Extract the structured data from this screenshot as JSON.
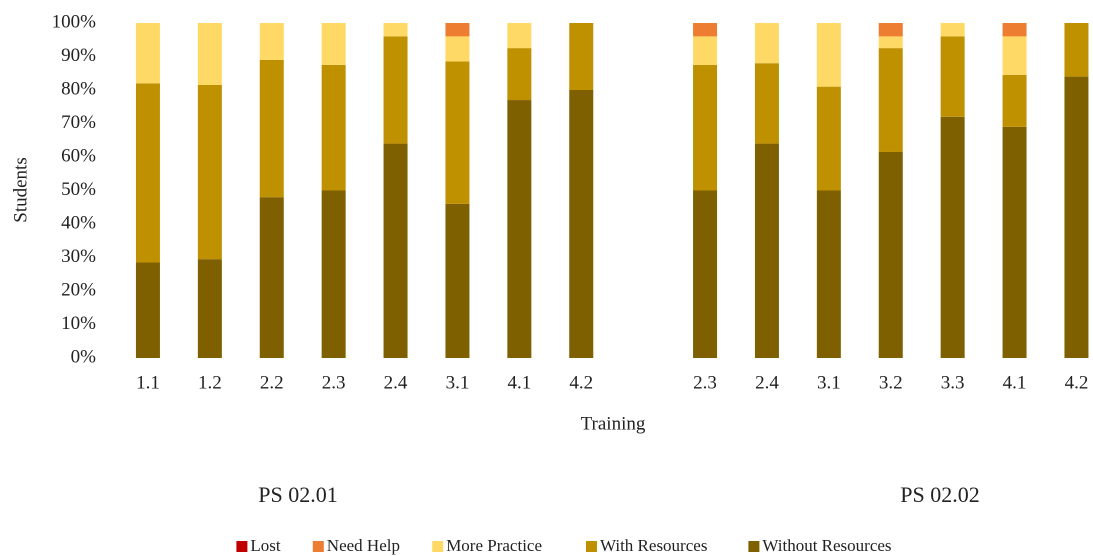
{
  "chart_data": {
    "type": "stacked_bar",
    "xlabel": "Training",
    "ylabel": "Students",
    "categories": [
      "1.1",
      "1.2",
      "2.2",
      "2.3",
      "2.4",
      "3.1",
      "4.1",
      "4.2",
      null,
      "2.3",
      "2.4",
      "3.1",
      "3.2",
      "3.3",
      "4.1",
      "4.2"
    ],
    "series": [
      {
        "name": "Lost",
        "color": "#c00000",
        "values": [
          0,
          0,
          0,
          0,
          0,
          0,
          0,
          0,
          null,
          0,
          0,
          0,
          0,
          0,
          0,
          0
        ]
      },
      {
        "name": "Need Help",
        "color": "#ed7d31",
        "values": [
          0,
          0,
          0,
          0,
          0,
          4,
          0,
          0,
          null,
          4,
          0,
          0,
          4,
          0,
          4,
          0
        ]
      },
      {
        "name": "More Practice",
        "color": "#ffd966",
        "values": [
          18,
          18.5,
          11,
          12.5,
          4,
          7.5,
          7.5,
          0,
          null,
          8.5,
          12,
          19,
          3.5,
          4,
          11.5,
          0
        ]
      },
      {
        "name": "With Resources",
        "color": "#bf9000",
        "values": [
          53.5,
          52,
          41,
          37.5,
          32,
          42.5,
          15.5,
          20,
          null,
          37.5,
          24,
          31,
          31,
          24,
          15.5,
          16
        ]
      },
      {
        "name": "Without Resources",
        "color": "#7f6000",
        "values": [
          28.5,
          29.5,
          48,
          50,
          64,
          46,
          77,
          80,
          null,
          50,
          64,
          50,
          61.5,
          72,
          69,
          84
        ]
      }
    ],
    "stack_order": [
      "Without Resources",
      "With Resources",
      "More Practice",
      "Need Help",
      "Lost"
    ],
    "ylim": [
      0,
      100
    ],
    "yticks": [
      {
        "value": 0,
        "label": "0%"
      },
      {
        "value": 10,
        "label": "10%"
      },
      {
        "value": 20,
        "label": "20%"
      },
      {
        "value": 30,
        "label": "30%"
      },
      {
        "value": 40,
        "label": "40%"
      },
      {
        "value": 50,
        "label": "50%"
      },
      {
        "value": 60,
        "label": "60%"
      },
      {
        "value": 70,
        "label": "70%"
      },
      {
        "value": 80,
        "label": "80%"
      },
      {
        "value": 90,
        "label": "90%"
      },
      {
        "value": 100,
        "label": "100%"
      }
    ],
    "grid": false,
    "legend": "bottom",
    "annotations": [
      "PS 02.01",
      "PS 02.02"
    ]
  }
}
